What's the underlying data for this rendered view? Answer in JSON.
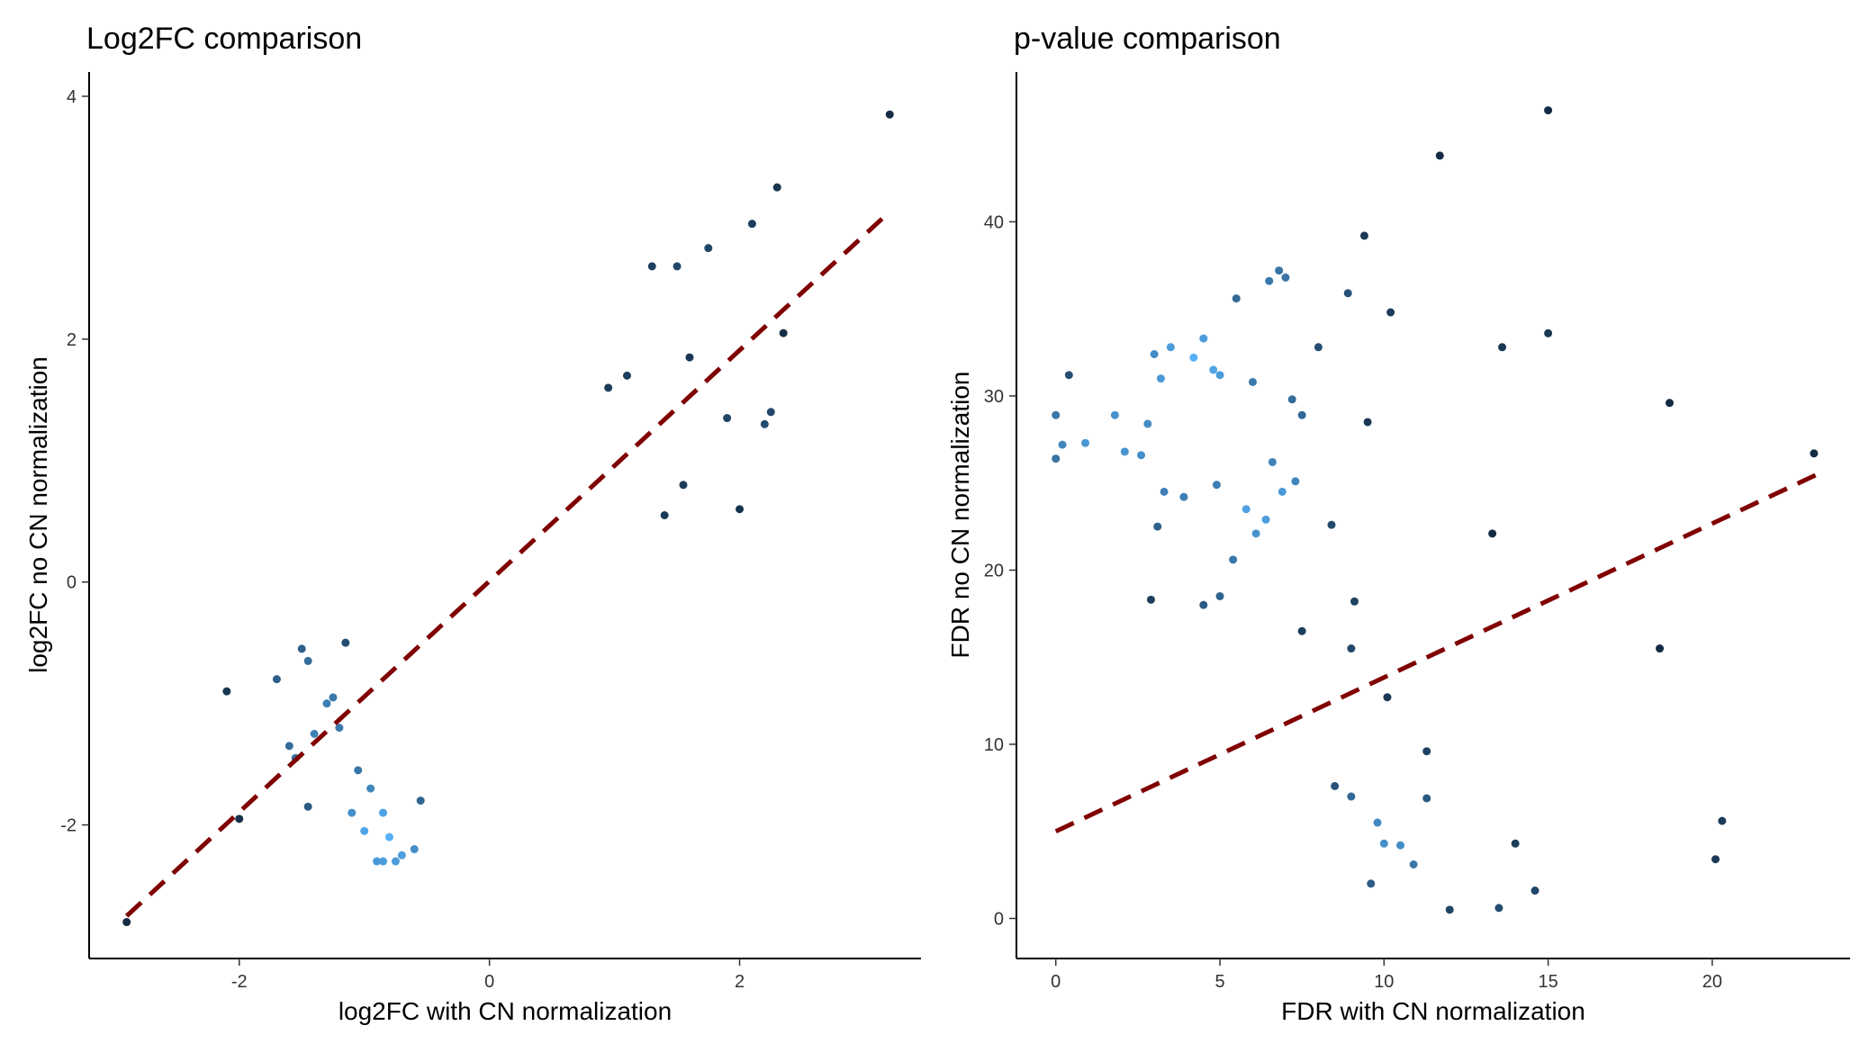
{
  "chart_data": [
    {
      "type": "scatter",
      "title": "Log2FC comparison",
      "xlabel": "log2FC with CN normalization",
      "ylabel": "log2FC no CN normalization",
      "xlim": [
        -3.2,
        3.45
      ],
      "ylim": [
        -3.1,
        4.2
      ],
      "xticks": [
        -2,
        0,
        2
      ],
      "yticks": [
        -2,
        0,
        2,
        4
      ],
      "grid": false,
      "point_color_low": "#132b43",
      "point_color_high": "#56b1f7",
      "fit_line": {
        "color": "#800000",
        "style": "dashed",
        "x": [
          -2.9,
          3.2
        ],
        "y": [
          -2.75,
          3.05
        ]
      },
      "points": {
        "x": [
          -2.9,
          -2.1,
          -2.0,
          -1.7,
          -1.6,
          -1.55,
          -1.5,
          -1.45,
          -1.45,
          -1.4,
          -1.3,
          -1.25,
          -1.2,
          -1.15,
          -1.1,
          -1.05,
          -1.0,
          -0.95,
          -0.9,
          -0.85,
          -0.85,
          -0.8,
          -0.75,
          -0.7,
          -0.6,
          -0.55,
          1.3,
          1.5,
          1.6,
          1.75,
          1.9,
          2.0,
          2.1,
          2.2,
          2.25,
          2.3,
          2.35,
          3.2,
          1.55,
          1.4,
          0.95,
          1.1
        ],
        "y": [
          -2.8,
          -0.9,
          -1.95,
          -0.8,
          -1.35,
          -1.45,
          -0.55,
          -0.65,
          -1.85,
          -1.25,
          -1.0,
          -0.95,
          -1.2,
          -0.5,
          -1.9,
          -1.55,
          -2.05,
          -1.7,
          -2.3,
          -1.9,
          -2.3,
          -2.1,
          -2.3,
          -2.25,
          -2.2,
          -1.8,
          2.6,
          2.6,
          1.85,
          2.75,
          1.35,
          0.6,
          2.95,
          1.3,
          1.4,
          3.25,
          2.05,
          3.85,
          0.8,
          0.55,
          1.6,
          1.7
        ]
      }
    },
    {
      "type": "scatter",
      "title": "p-value comparison",
      "xlabel": "FDR with CN normalization",
      "ylabel": "FDR no CN normalization",
      "xlim": [
        -1.2,
        24.2
      ],
      "ylim": [
        -2.3,
        48.6
      ],
      "xticks": [
        0,
        5,
        10,
        15,
        20
      ],
      "yticks": [
        0,
        10,
        20,
        30,
        40
      ],
      "grid": false,
      "point_color_low": "#132b43",
      "point_color_high": "#56b1f7",
      "fit_line": {
        "color": "#800000",
        "style": "dashed",
        "x": [
          0,
          23.2
        ],
        "y": [
          5.0,
          25.5
        ]
      },
      "points": {
        "x": [
          15.0,
          11.7,
          9.4,
          6.8,
          7.0,
          6.5,
          8.9,
          10.2,
          5.5,
          4.5,
          3.5,
          3.0,
          3.2,
          4.2,
          4.8,
          5.0,
          6.0,
          7.5,
          8.0,
          9.5,
          13.6,
          15.0,
          18.7,
          23.1,
          20.3,
          20.1,
          18.4,
          13.3,
          14.0,
          14.6,
          13.5,
          8.4,
          9.1,
          9.0,
          10.1,
          11.3,
          11.3,
          10.5,
          10.9,
          0.0,
          0.0,
          0.2,
          0.4,
          0.9,
          1.8,
          2.1,
          2.6,
          2.8,
          3.3,
          3.9,
          6.6,
          6.9,
          7.3,
          7.2,
          5.4,
          4.9,
          5.8,
          6.1,
          6.4,
          7.5,
          3.1,
          2.9,
          4.5,
          5.0,
          9.0,
          8.5,
          9.8,
          10.0,
          9.6,
          12.0
        ],
        "y": [
          46.4,
          43.8,
          39.2,
          37.2,
          36.8,
          36.6,
          35.9,
          34.8,
          35.6,
          33.3,
          32.8,
          32.4,
          31.0,
          32.2,
          31.5,
          31.2,
          30.8,
          28.9,
          32.8,
          28.5,
          32.8,
          33.6,
          29.6,
          26.7,
          5.6,
          3.4,
          15.5,
          22.1,
          4.3,
          1.6,
          0.6,
          22.6,
          18.2,
          15.5,
          12.7,
          9.6,
          6.9,
          4.2,
          3.1,
          28.9,
          26.4,
          27.2,
          31.2,
          27.3,
          28.9,
          26.8,
          26.6,
          28.4,
          24.5,
          24.2,
          26.2,
          24.5,
          25.1,
          29.8,
          20.6,
          24.9,
          23.5,
          22.1,
          22.9,
          16.5,
          22.5,
          18.3,
          18.0,
          18.5,
          7.0,
          7.6,
          5.5,
          4.3,
          2.0,
          0.5
        ]
      }
    }
  ]
}
